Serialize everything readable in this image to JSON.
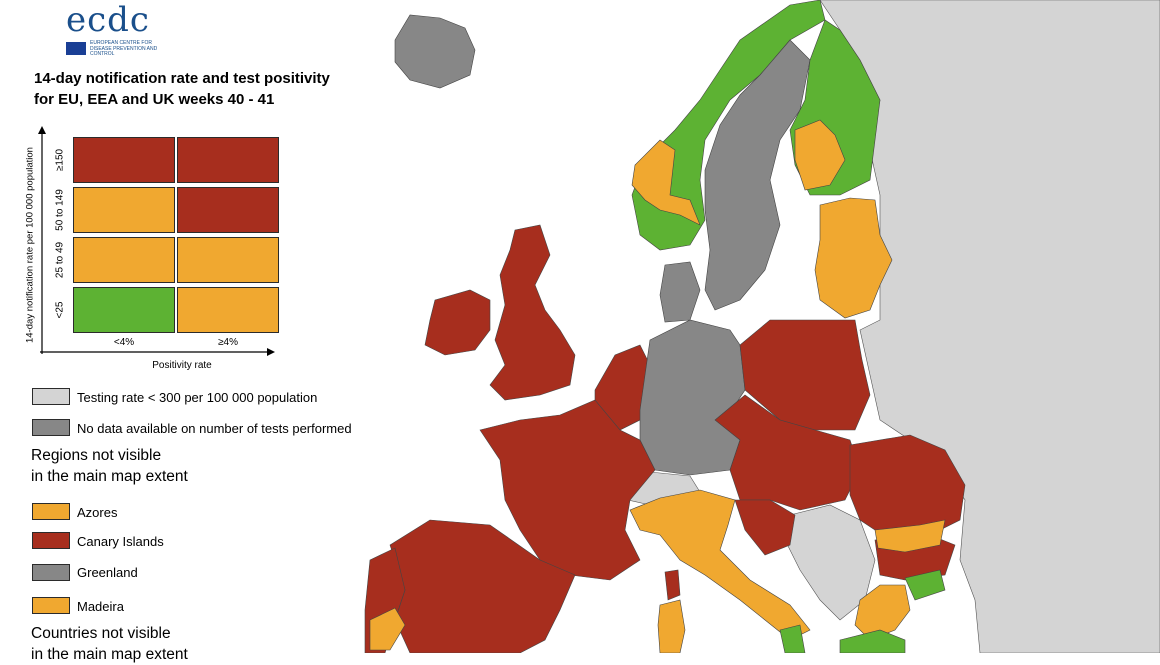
{
  "logo": {
    "text": "ecdc",
    "agency": "EUROPEAN CENTRE FOR DISEASE PREVENTION AND CONTROL"
  },
  "title": {
    "line1": "14-day notification rate and test positivity",
    "line2": "for EU, EEA and UK weeks 40 - 41"
  },
  "matrix": {
    "ylabel": "14-day notification rate per 100 000 population",
    "xlabel": "Positivity rate",
    "rows": [
      "≥150",
      "50 to 149",
      "25 to 49",
      "<25"
    ],
    "cols": [
      "<4%",
      "≥4%"
    ],
    "colors": [
      [
        "#a72e1e",
        "#a72e1e"
      ],
      [
        "#f0a830",
        "#a72e1e"
      ],
      [
        "#f0a830",
        "#f0a830"
      ],
      [
        "#5db233",
        "#f0a830"
      ]
    ]
  },
  "legend": {
    "items": [
      {
        "label": "Testing rate < 300 per 100 000 population",
        "color": "#d4d4d4"
      },
      {
        "label": "No data available on number of tests performed",
        "color": "#878787"
      }
    ]
  },
  "regions": {
    "heading1": "Regions not visible",
    "heading2": "in the main map extent",
    "items": [
      {
        "label": "Azores",
        "color": "#f0a830"
      },
      {
        "label": "Canary Islands",
        "color": "#a72e1e"
      },
      {
        "label": "Greenland",
        "color": "#878787"
      },
      {
        "label": "Madeira",
        "color": "#f0a830"
      }
    ]
  },
  "countries": {
    "heading1": "Countries not visible",
    "heading2": "in the main map extent"
  },
  "colors": {
    "red": "#a72e1e",
    "orange": "#f0a830",
    "green": "#5db233",
    "dark_grey": "#878787",
    "light_grey": "#d4d4d4",
    "border": "#2b2b2b"
  }
}
